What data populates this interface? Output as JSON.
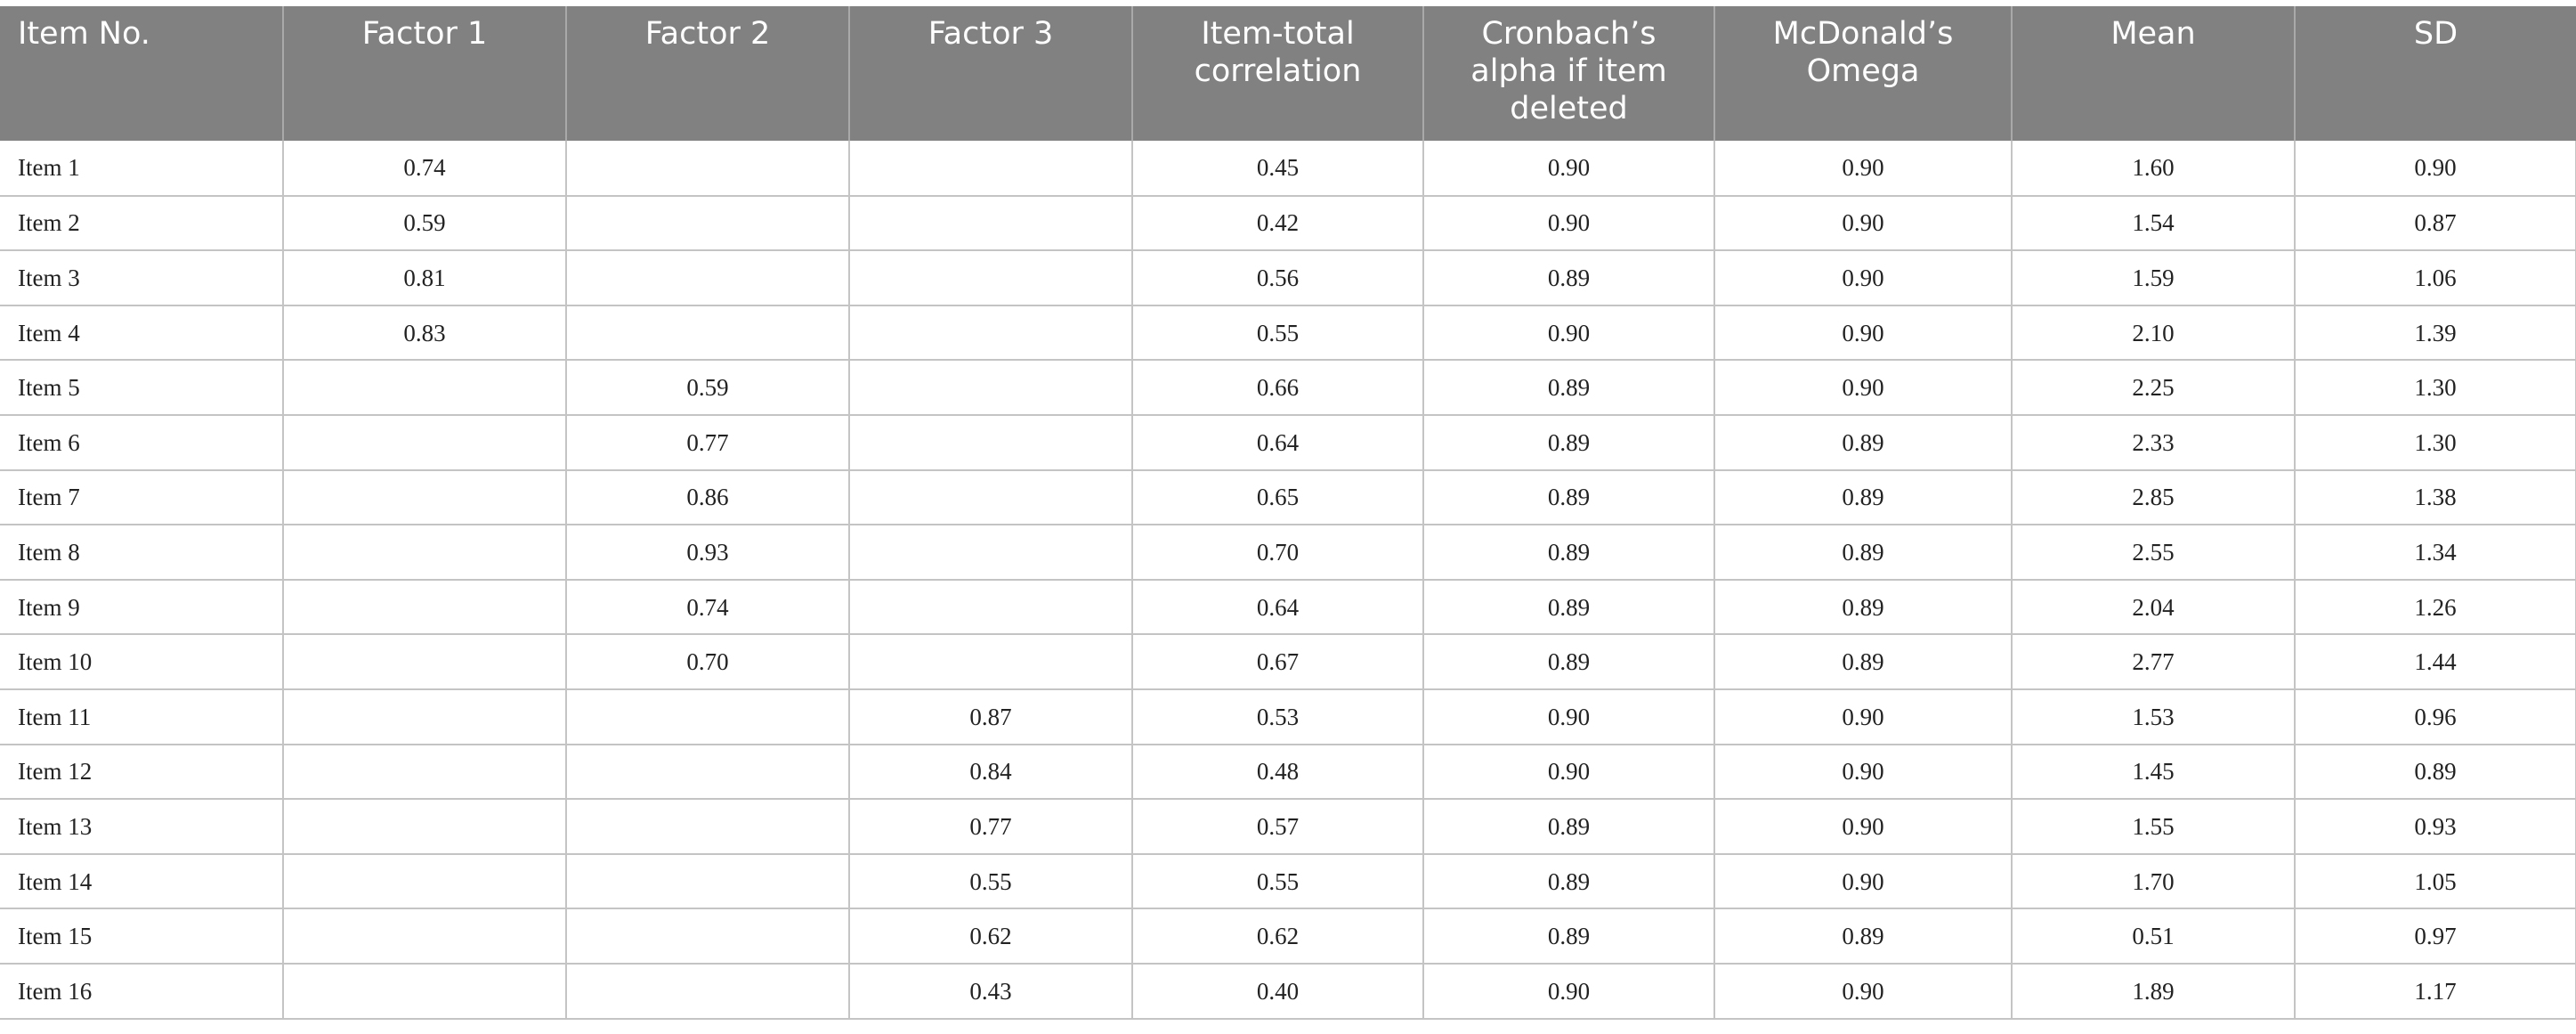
{
  "table": {
    "headers": [
      "Item No.",
      "Factor 1",
      "Factor 2",
      "Factor 3",
      "Item-total correlation",
      "Cronbach’s alpha if item deleted",
      "McDonald’s Omega",
      "Mean",
      "SD"
    ],
    "rows": [
      [
        "Item 1",
        "0.74",
        "",
        "",
        "0.45",
        "0.90",
        "0.90",
        "1.60",
        "0.90"
      ],
      [
        "Item 2",
        "0.59",
        "",
        "",
        "0.42",
        "0.90",
        "0.90",
        "1.54",
        "0.87"
      ],
      [
        "Item 3",
        "0.81",
        "",
        "",
        "0.56",
        "0.89",
        "0.90",
        "1.59",
        "1.06"
      ],
      [
        "Item 4",
        "0.83",
        "",
        "",
        "0.55",
        "0.90",
        "0.90",
        "2.10",
        "1.39"
      ],
      [
        "Item 5",
        "",
        "0.59",
        "",
        "0.66",
        "0.89",
        "0.90",
        "2.25",
        "1.30"
      ],
      [
        "Item 6",
        "",
        "0.77",
        "",
        "0.64",
        "0.89",
        "0.89",
        "2.33",
        "1.30"
      ],
      [
        "Item 7",
        "",
        "0.86",
        "",
        "0.65",
        "0.89",
        "0.89",
        "2.85",
        "1.38"
      ],
      [
        "Item 8",
        "",
        "0.93",
        "",
        "0.70",
        "0.89",
        "0.89",
        "2.55",
        "1.34"
      ],
      [
        "Item 9",
        "",
        "0.74",
        "",
        "0.64",
        "0.89",
        "0.89",
        "2.04",
        "1.26"
      ],
      [
        "Item 10",
        "",
        "0.70",
        "",
        "0.67",
        "0.89",
        "0.89",
        "2.77",
        "1.44"
      ],
      [
        "Item 11",
        "",
        "",
        "0.87",
        "0.53",
        "0.90",
        "0.90",
        "1.53",
        "0.96"
      ],
      [
        "Item 12",
        "",
        "",
        "0.84",
        "0.48",
        "0.90",
        "0.90",
        "1.45",
        "0.89"
      ],
      [
        "Item 13",
        "",
        "",
        "0.77",
        "0.57",
        "0.89",
        "0.90",
        "1.55",
        "0.93"
      ],
      [
        "Item 14",
        "",
        "",
        "0.55",
        "0.55",
        "0.89",
        "0.90",
        "1.70",
        "1.05"
      ],
      [
        "Item 15",
        "",
        "",
        "0.62",
        "0.62",
        "0.89",
        "0.89",
        "0.51",
        "0.97"
      ],
      [
        "Item 16",
        "",
        "",
        "0.43",
        "0.40",
        "0.90",
        "0.90",
        "1.89",
        "1.17"
      ]
    ]
  }
}
